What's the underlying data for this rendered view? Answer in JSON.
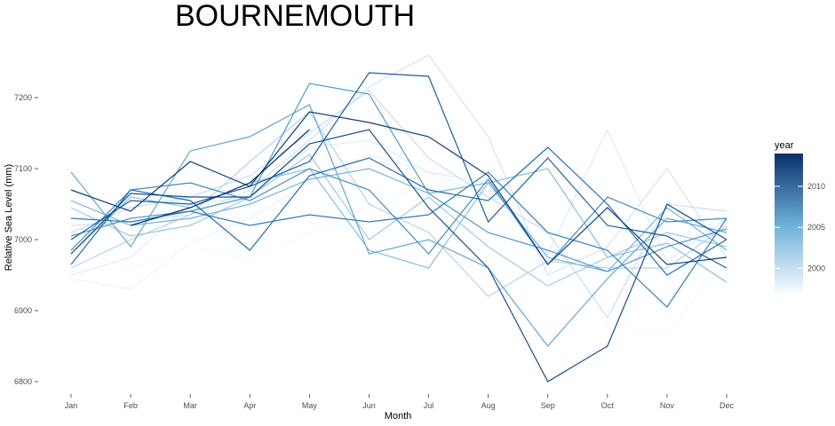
{
  "chart_data": {
    "type": "line",
    "title": "BOURNEMOUTH",
    "xlabel": "Month",
    "ylabel": "Relative Sea Level (mm)",
    "categories": [
      "Jan",
      "Feb",
      "Mar",
      "Apr",
      "May",
      "Jun",
      "Jul",
      "Aug",
      "Sep",
      "Oct",
      "Nov",
      "Dec"
    ],
    "ylim": [
      6780,
      7270
    ],
    "yticks": [
      6800,
      6900,
      7000,
      7100,
      7200
    ],
    "yticklabels": [
      "6800",
      "6900",
      "7000",
      "7100",
      "7200"
    ],
    "grid": false,
    "legend": {
      "title": "year",
      "position": "right",
      "type": "colorbar",
      "range": [
        1997,
        2014
      ],
      "ticks": [
        2000,
        2005,
        2010
      ],
      "low_color": "#f7fbff",
      "high_color": "#08306b"
    },
    "series": [
      {
        "year": 1997,
        "values": [
          6990,
          6960,
          6990,
          6970,
          7010,
          7030,
          7090,
          7050,
          6990,
          6880,
          6870,
          6970
        ]
      },
      {
        "year": 1998,
        "values": [
          6945,
          6930,
          6995,
          7030,
          7080,
          7120,
          7095,
          7060,
          6980,
          6950,
          7000,
          7030
        ]
      },
      {
        "year": 1999,
        "values": [
          6950,
          6975,
          7050,
          7060,
          7130,
          7140,
          7095,
          7080,
          6980,
          7155,
          6970,
          7030
        ]
      },
      {
        "year": 2000,
        "values": [
          7020,
          7025,
          7035,
          7070,
          7140,
          7215,
          7260,
          7145,
          6950,
          6990,
          7100,
          6975
        ]
      },
      {
        "year": 2001,
        "values": [
          7010,
          7045,
          7060,
          7090,
          7150,
          7210,
          7115,
          7060,
          7010,
          6890,
          7050,
          7040
        ]
      },
      {
        "year": 2002,
        "values": [
          6960,
          7000,
          7035,
          7110,
          7180,
          7050,
          7010,
          6920,
          6970,
          6960,
          6960,
          7020
        ]
      },
      {
        "year": 2003,
        "values": [
          7045,
          7005,
          7020,
          7060,
          7120,
          7000,
          7060,
          6990,
          6935,
          6975,
          7010,
          6990
        ]
      },
      {
        "year": 2004,
        "values": [
          6980,
          7060,
          7045,
          7080,
          7100,
          6985,
          6960,
          7080,
          7100,
          6975,
          6995,
          6940
        ]
      },
      {
        "year": 2005,
        "values": [
          7055,
          7020,
          7030,
          7050,
          7085,
          7100,
          7065,
          7080,
          6975,
          6955,
          7045,
          6985
        ]
      },
      {
        "year": 2006,
        "values": [
          7095,
          6990,
          7125,
          7145,
          7190,
          6980,
          7000,
          6960,
          6850,
          6945,
          7030,
          7010
        ]
      },
      {
        "year": 2007,
        "values": [
          7005,
          7030,
          7040,
          7060,
          7220,
          7205,
          7065,
          7010,
          6985,
          6955,
          6990,
          7015
        ]
      },
      {
        "year": 2008,
        "values": [
          6985,
          7070,
          7080,
          7055,
          7100,
          7070,
          6980,
          7085,
          6965,
          7060,
          7025,
          7030
        ]
      },
      {
        "year": 2009,
        "values": [
          7030,
          7025,
          7040,
          7020,
          7035,
          7025,
          7035,
          7095,
          7010,
          6985,
          6905,
          7030
        ]
      },
      {
        "year": 2010,
        "values": [
          6965,
          7070,
          7055,
          6985,
          7090,
          7115,
          7070,
          7055,
          7130,
          7050,
          6950,
          7000
        ]
      },
      {
        "year": 2011,
        "values": [
          7000,
          7055,
          7050,
          7075,
          7110,
          7235,
          7230,
          7025,
          7115,
          7020,
          7005,
          6960
        ]
      },
      {
        "year": 2012,
        "values": [
          6980,
          7065,
          7060,
          7060,
          7135,
          7155,
          7045,
          6960,
          6800,
          6850,
          7050,
          7000
        ]
      },
      {
        "year": 2013,
        "values": [
          7070,
          7040,
          7110,
          7075,
          7180,
          7165,
          7145,
          7090,
          6965,
          7045,
          6965,
          6975
        ]
      },
      {
        "year": 2014,
        "values": [
          null,
          7020,
          7045,
          7080,
          7155,
          null,
          null,
          null,
          null,
          null,
          null,
          null
        ]
      }
    ]
  }
}
